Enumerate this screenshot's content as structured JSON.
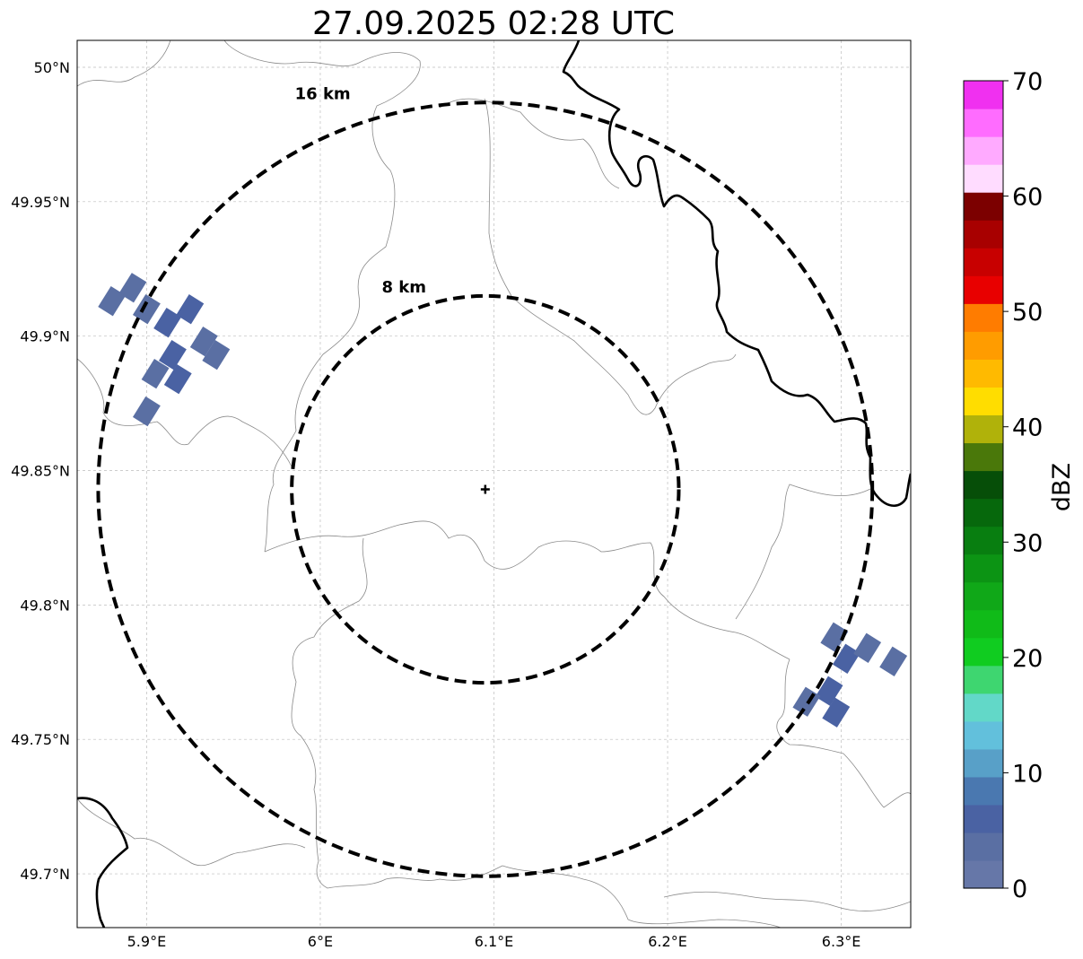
{
  "title": "27.09.2025 02:28 UTC",
  "map": {
    "lon_range": [
      5.86,
      6.34
    ],
    "lat_range": [
      49.68,
      50.01
    ],
    "lon_ticks": [
      {
        "value": 5.9,
        "label": "5.9°E"
      },
      {
        "value": 6.0,
        "label": "6°E"
      },
      {
        "value": 6.1,
        "label": "6.1°E"
      },
      {
        "value": 6.2,
        "label": "6.2°E"
      },
      {
        "value": 6.3,
        "label": "6.3°E"
      }
    ],
    "lat_ticks": [
      {
        "value": 50.0,
        "label": "50°N"
      },
      {
        "value": 49.95,
        "label": "49.95°N"
      },
      {
        "value": 49.9,
        "label": "49.9°N"
      },
      {
        "value": 49.85,
        "label": "49.85°N"
      },
      {
        "value": 49.8,
        "label": "49.8°N"
      },
      {
        "value": 49.75,
        "label": "49.75°N"
      },
      {
        "value": 49.7,
        "label": "49.7°N"
      }
    ],
    "gridlines": true,
    "radar_site": {
      "lon": 6.095,
      "lat": 49.843
    },
    "range_rings": [
      {
        "radius_km": 8,
        "label": "8 km"
      },
      {
        "radius_km": 16,
        "label": "16 km"
      }
    ],
    "echo_cells": [
      {
        "lon": 5.88,
        "lat": 49.913,
        "dbz": 3
      },
      {
        "lon": 5.892,
        "lat": 49.918,
        "dbz": 4
      },
      {
        "lon": 5.9,
        "lat": 49.91,
        "dbz": 3
      },
      {
        "lon": 5.912,
        "lat": 49.905,
        "dbz": 6
      },
      {
        "lon": 5.925,
        "lat": 49.91,
        "dbz": 5
      },
      {
        "lon": 5.933,
        "lat": 49.898,
        "dbz": 4
      },
      {
        "lon": 5.915,
        "lat": 49.893,
        "dbz": 6
      },
      {
        "lon": 5.905,
        "lat": 49.886,
        "dbz": 3
      },
      {
        "lon": 5.918,
        "lat": 49.884,
        "dbz": 5
      },
      {
        "lon": 5.9,
        "lat": 49.872,
        "dbz": 4
      },
      {
        "lon": 5.94,
        "lat": 49.893,
        "dbz": 3
      },
      {
        "lon": 6.296,
        "lat": 49.788,
        "dbz": 4
      },
      {
        "lon": 6.303,
        "lat": 49.78,
        "dbz": 5
      },
      {
        "lon": 6.315,
        "lat": 49.784,
        "dbz": 3
      },
      {
        "lon": 6.33,
        "lat": 49.779,
        "dbz": 3
      },
      {
        "lon": 6.293,
        "lat": 49.768,
        "dbz": 5
      },
      {
        "lon": 6.297,
        "lat": 49.76,
        "dbz": 6
      },
      {
        "lon": 6.28,
        "lat": 49.764,
        "dbz": 4
      }
    ]
  },
  "colorbar": {
    "label": "dBZ",
    "min": 0,
    "max": 70,
    "ticks": [
      {
        "value": 0,
        "label": "0"
      },
      {
        "value": 10,
        "label": "10"
      },
      {
        "value": 20,
        "label": "20"
      },
      {
        "value": 30,
        "label": "30"
      },
      {
        "value": 40,
        "label": "40"
      },
      {
        "value": 50,
        "label": "50"
      },
      {
        "value": 60,
        "label": "60"
      },
      {
        "value": 70,
        "label": "70"
      }
    ],
    "colors": [
      "#6677a8",
      "#5a6fa3",
      "#4a62a3",
      "#4a78b0",
      "#58a0c8",
      "#62c0dc",
      "#62d8c8",
      "#3ed670",
      "#10cc20",
      "#10bb18",
      "#10a818",
      "#0c9414",
      "#087e10",
      "#06680c",
      "#064e08",
      "#4a780a",
      "#b0b20a",
      "#ffdd00",
      "#ffba00",
      "#ff9c00",
      "#ff7c00",
      "#e80000",
      "#c80000",
      "#a80000",
      "#7c0000",
      "#ffdcff",
      "#ffaaff",
      "#ff6cff",
      "#f030f0"
    ]
  }
}
